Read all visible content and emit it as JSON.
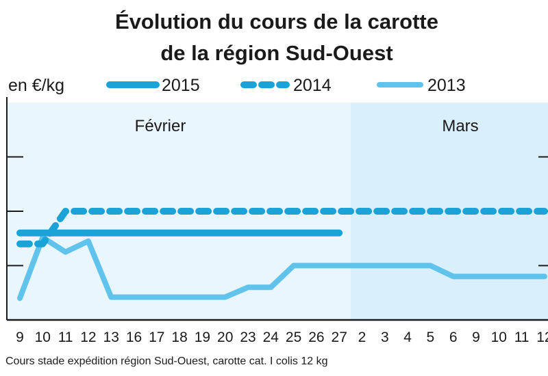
{
  "chart_data": {
    "type": "line",
    "title_line1": "Évolution du cours de la carotte",
    "title_line2": "de la région Sud-Ouest",
    "ylabel": "en €/kg",
    "x_labels": [
      "9",
      "10",
      "11",
      "12",
      "13",
      "16",
      "17",
      "18",
      "19",
      "20",
      "23",
      "24",
      "25",
      "26",
      "27",
      "2",
      "3",
      "4",
      "5",
      "6",
      "9",
      "10",
      "11",
      "12"
    ],
    "periods": [
      {
        "label": "Février",
        "start_index": 0,
        "end_index": 14
      },
      {
        "label": "Mars",
        "start_index": 15,
        "end_index": 23
      }
    ],
    "y_gridlines": [
      0.9,
      1.0,
      1.1
    ],
    "ylim": [
      0.8,
      1.2
    ],
    "series": [
      {
        "name": "2015",
        "style": "solid-thick",
        "color": "#1ba3d8",
        "values": [
          0.96,
          0.96,
          0.96,
          0.96,
          0.96,
          0.96,
          0.96,
          0.96,
          0.96,
          0.96,
          0.96,
          0.96,
          0.96,
          0.96,
          0.96
        ]
      },
      {
        "name": "2014",
        "style": "dashed",
        "color": "#1ba3d8",
        "values": [
          0.94,
          0.94,
          1.0,
          1.0,
          1.0,
          1.0,
          1.0,
          1.0,
          1.0,
          1.0,
          1.0,
          1.0,
          1.0,
          1.0,
          1.0,
          1.0,
          1.0,
          1.0,
          1.0,
          1.0,
          1.0,
          1.0,
          1.0,
          1.0
        ]
      },
      {
        "name": "2013",
        "style": "solid-light",
        "color": "#5fc3ec",
        "values": [
          0.84,
          0.952,
          0.925,
          0.945,
          0.842,
          0.842,
          0.842,
          0.842,
          0.842,
          0.842,
          0.86,
          0.86,
          0.9,
          0.9,
          0.9,
          0.9,
          0.9,
          0.9,
          0.9,
          0.88,
          0.88,
          0.88,
          0.88,
          0.88
        ]
      }
    ],
    "source_note": "Cours stade expédition région Sud-Ouest, carotte cat. I colis 12 kg",
    "colors": {
      "panel_fevrier": "#eaf6fd",
      "panel_mars": "#d9effb",
      "gridline": "#1a1a1a",
      "text": "#1a1a1a"
    }
  }
}
